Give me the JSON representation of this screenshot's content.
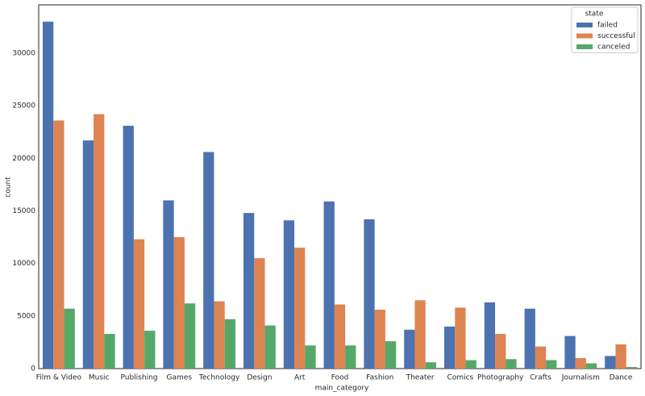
{
  "chart_data": {
    "type": "bar",
    "xlabel": "main_category",
    "ylabel": "count",
    "categories": [
      "Film & Video",
      "Music",
      "Publishing",
      "Games",
      "Technology",
      "Design",
      "Art",
      "Food",
      "Fashion",
      "Theater",
      "Comics",
      "Photography",
      "Crafts",
      "Journalism",
      "Dance"
    ],
    "series": [
      {
        "name": "failed",
        "color": "#4c72b0",
        "values": [
          33000,
          21700,
          23100,
          16000,
          20600,
          14800,
          14100,
          15900,
          14200,
          3700,
          4000,
          6300,
          5700,
          3100,
          1200
        ]
      },
      {
        "name": "successful",
        "color": "#dd8452",
        "values": [
          23600,
          24200,
          12300,
          12500,
          6400,
          10500,
          11500,
          6100,
          5600,
          6500,
          5800,
          3300,
          2100,
          1000,
          2300
        ]
      },
      {
        "name": "canceled",
        "color": "#55a868",
        "values": [
          5700,
          3300,
          3600,
          6200,
          4700,
          4100,
          2200,
          2200,
          2600,
          600,
          800,
          900,
          800,
          500,
          150
        ]
      }
    ],
    "legend_title": "state",
    "legend_loc": "upper right",
    "ylim": [
      0,
      34600
    ],
    "yticks": [
      0,
      5000,
      10000,
      15000,
      20000,
      25000,
      30000
    ],
    "grid": false
  }
}
